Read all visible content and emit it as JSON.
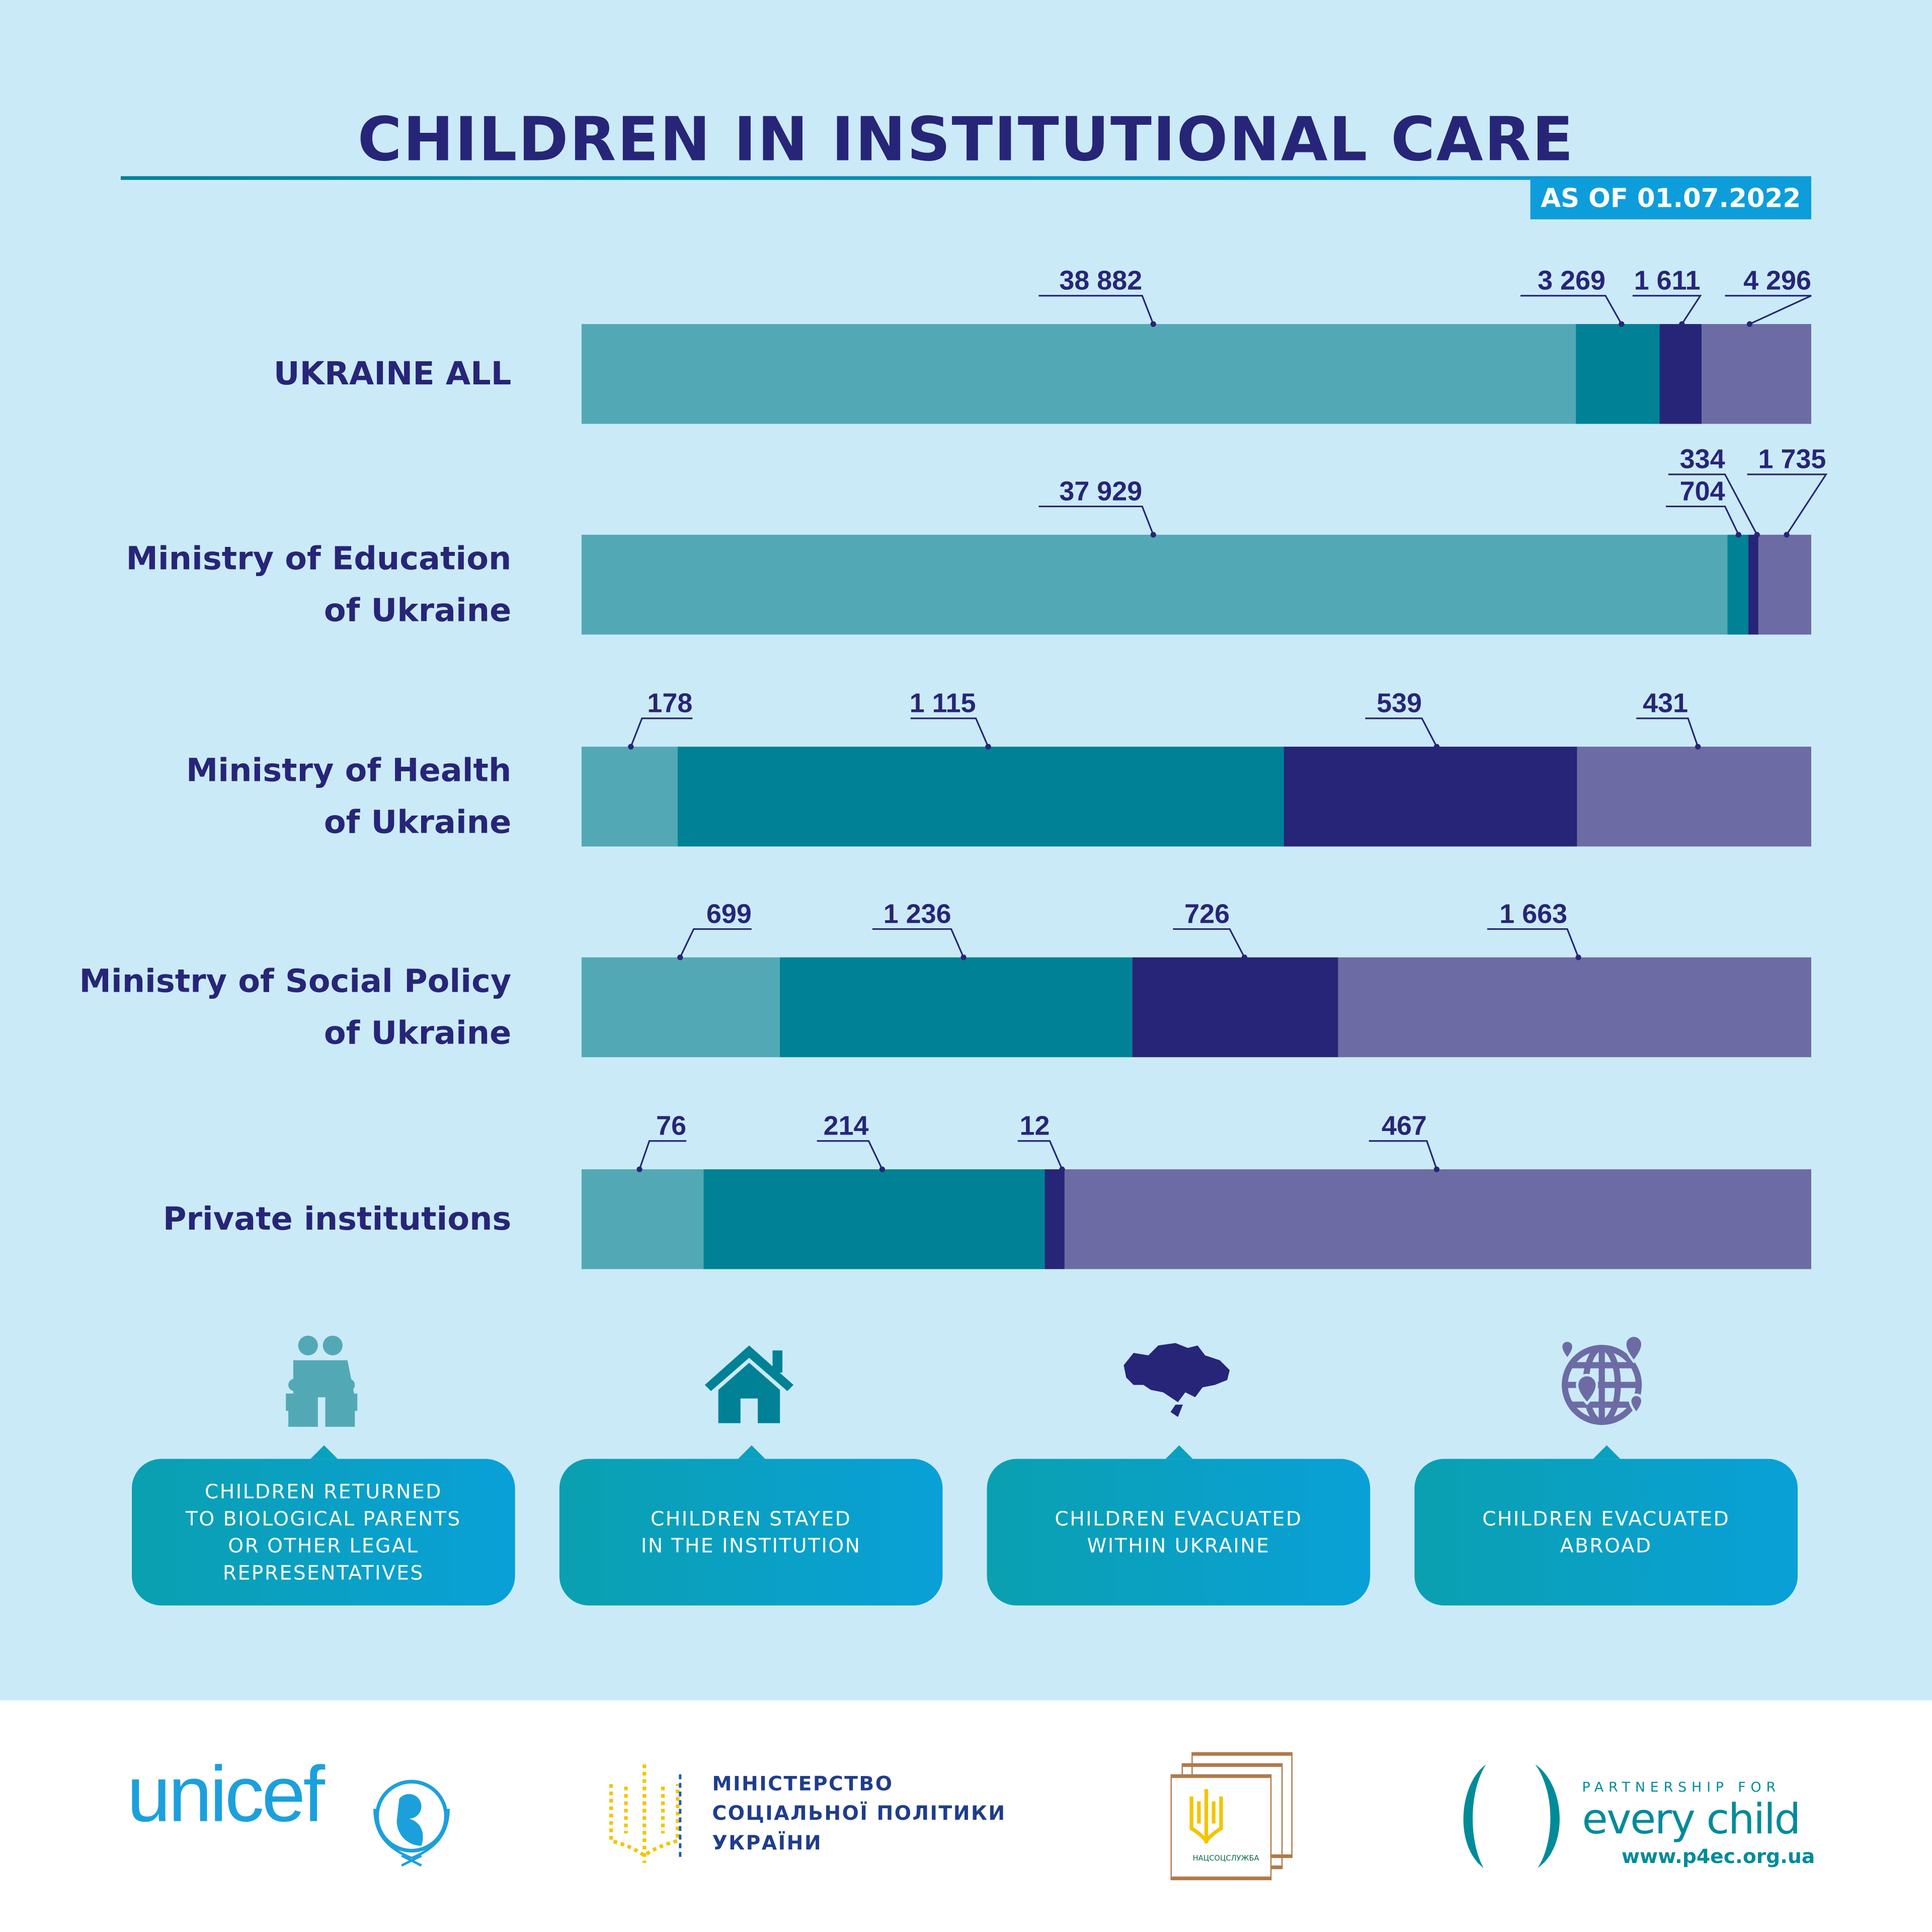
{
  "header": {
    "title": "CHILDREN IN INSTITUTIONAL CARE",
    "date": "AS OF 01.07.2022"
  },
  "colors": {
    "background": "#cbeaf7",
    "title": "#272577",
    "returned": "#52a9b5",
    "stayed": "#008196",
    "within": "#272577",
    "abroad": "#6d6ba4"
  },
  "chart_data": {
    "type": "bar",
    "orientation": "horizontal",
    "stacked": true,
    "normalized": true,
    "categories": [
      "UKRAINE ALL",
      "Ministry of Education of Ukraine",
      "Ministry of Health of Ukraine",
      "Ministry of Social Policy of Ukraine",
      "Private institutions"
    ],
    "series": [
      {
        "name": "CHILDREN RETURNED TO BIOLOGICAL PARENTS OR OTHER LEGAL REPRESENTATIVES",
        "color": "#52a9b5",
        "values": [
          38882,
          37929,
          178,
          699,
          76
        ],
        "labels": [
          "38 882",
          "37 929",
          "178",
          "699",
          "76"
        ]
      },
      {
        "name": "CHILDREN STAYED IN THE INSTITUTION",
        "color": "#008196",
        "values": [
          3269,
          704,
          1115,
          1236,
          214
        ],
        "labels": [
          "3 269",
          "704",
          "1 115",
          "1 236",
          "214"
        ]
      },
      {
        "name": "CHILDREN EVACUATED WITHIN UKRAINE",
        "color": "#272577",
        "values": [
          1611,
          334,
          539,
          726,
          12
        ],
        "labels": [
          "1 611",
          "334",
          "539",
          "726",
          "12"
        ]
      },
      {
        "name": "CHILDREN EVACUATED ABROAD",
        "color": "#6d6ba4",
        "values": [
          4296,
          1735,
          431,
          1663,
          467
        ],
        "labels": [
          "4 296",
          "1 735",
          "431",
          "1 663",
          "467"
        ]
      }
    ],
    "row_labels": [
      [
        "UKRAINE ALL"
      ],
      [
        "Ministry of Education",
        "of Ukraine"
      ],
      [
        "Ministry of Health",
        "of Ukraine"
      ],
      [
        "Ministry of Social Policy",
        "of Ukraine"
      ],
      [
        "Private institutions"
      ]
    ],
    "legend_placement": "bottom"
  },
  "legend": [
    {
      "text": "CHILDREN RETURNED\nTO BIOLOGICAL PARENTS\nOR OTHER LEGAL\nREPRESENTATIVES",
      "icon": "family-icon"
    },
    {
      "text": "CHILDREN STAYED\nIN THE INSTITUTION",
      "icon": "house-icon"
    },
    {
      "text": "CHILDREN EVACUATED\nWITHIN UKRAINE",
      "icon": "ukraine-map-icon"
    },
    {
      "text": "CHILDREN EVACUATED\nABROAD",
      "icon": "globe-pins-icon"
    }
  ],
  "footer": {
    "unicef": "unicef",
    "ministry": [
      "МІНІСТЕРСТВО",
      "СОЦІАЛЬНОЇ ПОЛІТИКИ",
      "УКРАЇНИ"
    ],
    "natssotssluzhba": "НАЦСОЦСЛУЖБА",
    "p4ec_top": "PARTNERSHIP FOR",
    "p4ec_main": "every child",
    "p4ec_url": "www.p4ec.org.ua"
  }
}
